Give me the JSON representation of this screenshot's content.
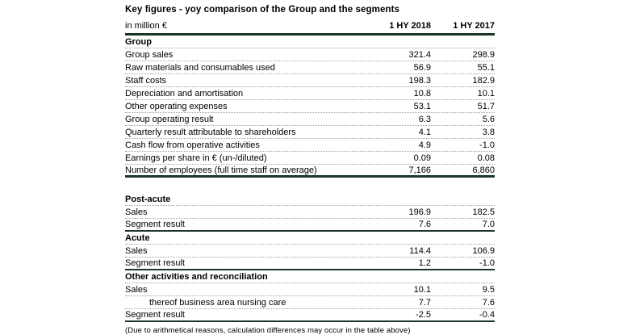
{
  "title": "Key figures - yoy comparison of the Group and the segments",
  "table": {
    "unit_label": "in million €",
    "col_2018": "1 HY 2018",
    "col_2017": "1 HY 2017",
    "sections": [
      {
        "name": "Group",
        "rows": [
          {
            "label": "Group sales",
            "hy2018": "321.4",
            "hy2017": "298.9"
          },
          {
            "label": "Raw materials and consumables used",
            "hy2018": "56.9",
            "hy2017": "55.1"
          },
          {
            "label": "Staff costs",
            "hy2018": "198.3",
            "hy2017": "182.9"
          },
          {
            "label": "Depreciation and amortisation",
            "hy2018": "10.8",
            "hy2017": "10.1"
          },
          {
            "label": "Other operating expenses",
            "hy2018": "53.1",
            "hy2017": "51.7"
          },
          {
            "label": "Group operating result",
            "hy2018": "6.3",
            "hy2017": "5.6"
          },
          {
            "label": "Quarterly result attributable to shareholders",
            "hy2018": "4.1",
            "hy2017": "3.8"
          },
          {
            "label": "Cash flow from operative activities",
            "hy2018": "4.9",
            "hy2017": "-1.0"
          },
          {
            "label": "Earnings per share in € (un-/diluted)",
            "hy2018": "0.09",
            "hy2017": "0.08"
          },
          {
            "label": "Number of employees  (full time staff on average)",
            "hy2018": "7,166",
            "hy2017": "6,860"
          }
        ]
      },
      {
        "name": "Post-acute",
        "rows": [
          {
            "label": "Sales",
            "hy2018": "196.9",
            "hy2017": "182.5"
          },
          {
            "label": "Segment result",
            "hy2018": "7.6",
            "hy2017": "7.0"
          }
        ]
      },
      {
        "name": "Acute",
        "rows": [
          {
            "label": "Sales",
            "hy2018": "114.4",
            "hy2017": "106.9"
          },
          {
            "label": "Segment result",
            "hy2018": "1.2",
            "hy2017": "-1.0"
          }
        ]
      },
      {
        "name": "Other activities and reconciliation",
        "rows": [
          {
            "label": "Sales",
            "hy2018": "10.1",
            "hy2017": "9.5"
          },
          {
            "label": "thereof business area nursing care",
            "hy2018": "7.7",
            "hy2017": "7.6"
          },
          {
            "label": "Segment result",
            "hy2018": "-2.5",
            "hy2017": "-0.4"
          }
        ]
      }
    ]
  },
  "footnote": "(Due to arithmetical reasons, calculation differences may occur in the table above)"
}
